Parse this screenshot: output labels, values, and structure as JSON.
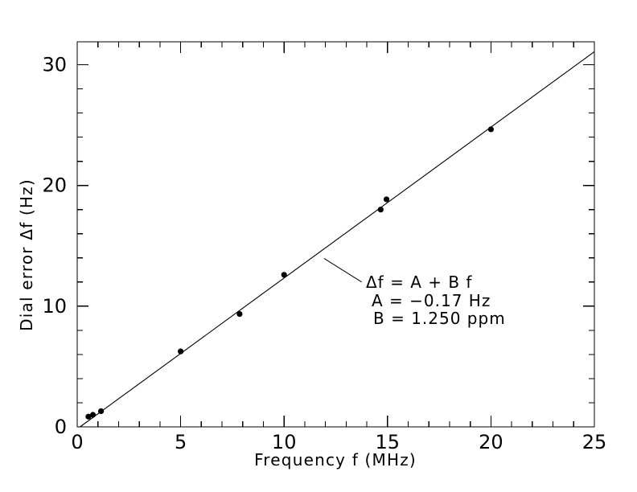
{
  "page": {
    "background": "#ffffff",
    "foreground": "#000000"
  },
  "chart_data": {
    "type": "scatter",
    "title": "",
    "xlabel": "Frequency f (MHz)",
    "ylabel": "Dial error Δf (Hz)",
    "xlim": [
      0,
      25
    ],
    "ylim": [
      0,
      31.9
    ],
    "x_major_ticks": [
      0,
      5,
      10,
      15,
      20,
      25
    ],
    "x_minor_step": 1,
    "y_major_ticks": [
      0,
      10,
      20,
      30
    ],
    "y_minor_step": 2,
    "grid": false,
    "frame": "full-box",
    "legend": "none",
    "marker": {
      "shape": "filled-circle",
      "color": "#000000",
      "radius_px": 3.6
    },
    "points": [
      {
        "f_mhz": 0.54,
        "df_hz": 0.85
      },
      {
        "f_mhz": 0.76,
        "df_hz": 1.0
      },
      {
        "f_mhz": 1.15,
        "df_hz": 1.3
      },
      {
        "f_mhz": 5.0,
        "df_hz": 6.25
      },
      {
        "f_mhz": 7.85,
        "df_hz": 9.35
      },
      {
        "f_mhz": 10.0,
        "df_hz": 12.6
      },
      {
        "f_mhz": 14.67,
        "df_hz": 18.0
      },
      {
        "f_mhz": 14.95,
        "df_hz": 18.85
      },
      {
        "f_mhz": 20.0,
        "df_hz": 24.65
      }
    ],
    "fit": {
      "model": "Δf = A + B f",
      "A_hz": -0.17,
      "B_ppm": 1.25,
      "x_end_mhz": 25
    },
    "annotation": {
      "lines": [
        "Δf = A + B f",
        "A = −0.17 Hz",
        "B = 1.250 ppm"
      ],
      "leader": {
        "x1_mhz": 11.94,
        "y1_hz": 13.95,
        "x2_mhz": 13.75,
        "y2_hz": 12.0
      }
    }
  }
}
